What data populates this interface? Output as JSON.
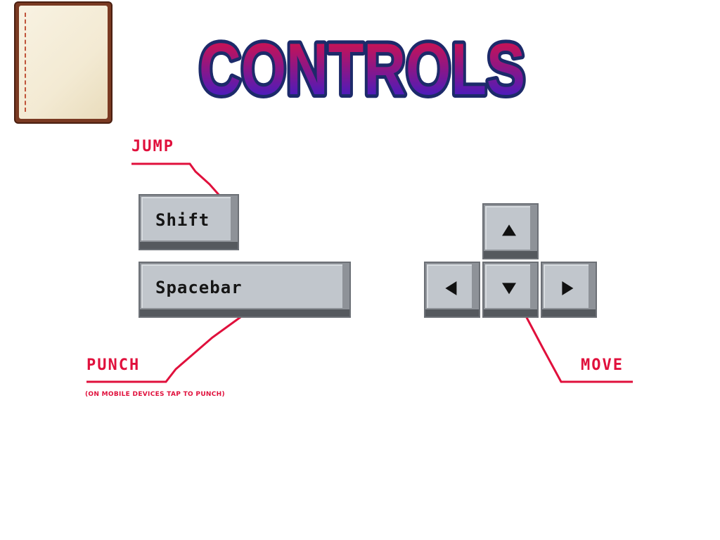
{
  "title": "CONTROLS",
  "colors": {
    "accent_red": "#e0103c",
    "title_top": "#e8103a",
    "title_bottom": "#2a1ed8",
    "key_face": "#c1c6cc",
    "key_shadow": "#55595e"
  },
  "icons": {
    "back": "notebook-icon"
  },
  "keys": {
    "shift": "Shift",
    "spacebar": "Spacebar",
    "up": "arrow-up-icon",
    "down": "arrow-down-icon",
    "left": "arrow-left-icon",
    "right": "arrow-right-icon"
  },
  "labels": {
    "jump": "JUMP",
    "punch": "PUNCH",
    "punch_note": "(ON MOBILE DEVICES TAP TO PUNCH)",
    "move": "MOVE"
  }
}
